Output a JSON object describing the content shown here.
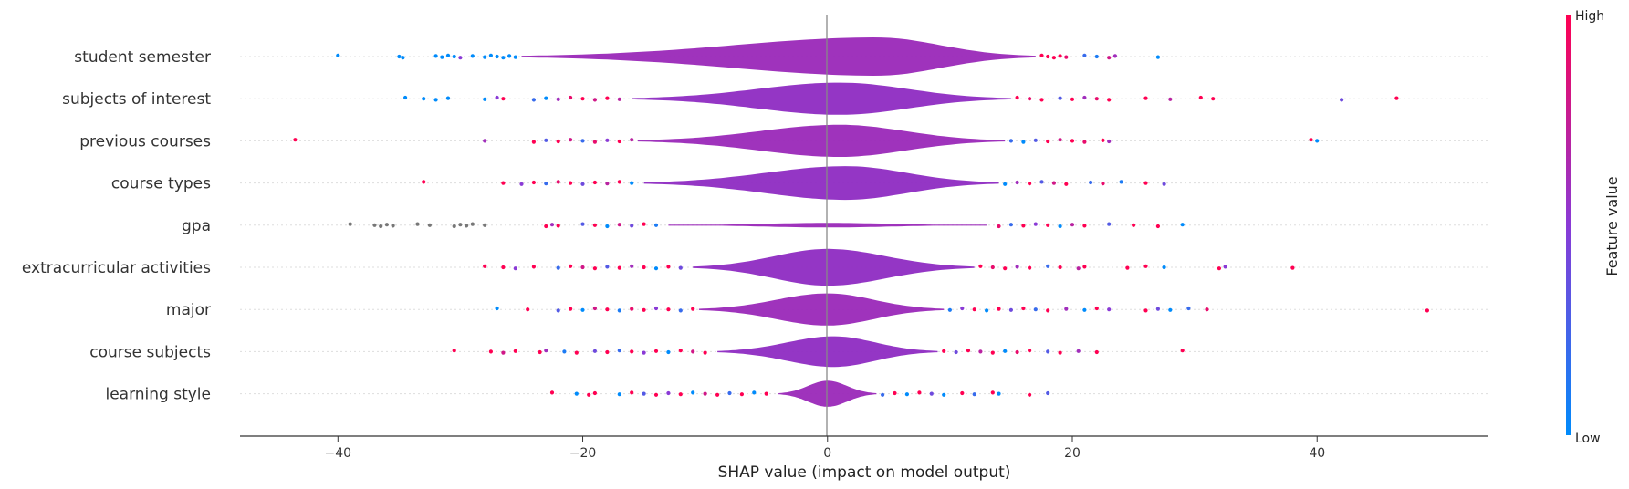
{
  "chart_data": {
    "type": "violin-summary",
    "xlabel": "SHAP value (impact on model output)",
    "xlim": [
      -48,
      54
    ],
    "xticks": [
      -40,
      -20,
      0,
      20,
      40
    ],
    "xtick_labels": [
      "−40",
      "−20",
      "0",
      "20",
      "40"
    ],
    "colorbar": {
      "title": "Feature value",
      "high_label": "High",
      "low_label": "Low",
      "low_color": "#008bfb",
      "high_color": "#ff0052"
    },
    "features": [
      {
        "name": "student semester",
        "min": -25,
        "max": 17,
        "peak": 4,
        "halfw": 0.5,
        "outliers": [
          {
            "x": -40,
            "v": 0
          },
          {
            "x": -35,
            "v": 0
          },
          {
            "x": -34.7,
            "v": 0
          },
          {
            "x": -32,
            "v": 0
          },
          {
            "x": -31.5,
            "v": 0
          },
          {
            "x": -31,
            "v": 0
          },
          {
            "x": -30.5,
            "v": 0
          },
          {
            "x": -30,
            "v": 0.5
          },
          {
            "x": -29,
            "v": 0
          },
          {
            "x": -28,
            "v": 0
          },
          {
            "x": -27.5,
            "v": 0
          },
          {
            "x": -27,
            "v": 0
          },
          {
            "x": -26.5,
            "v": 0
          },
          {
            "x": -26,
            "v": 0
          },
          {
            "x": -25.5,
            "v": 0
          },
          {
            "x": 17.5,
            "v": 1
          },
          {
            "x": 18,
            "v": 1
          },
          {
            "x": 18.5,
            "v": 1
          },
          {
            "x": 19,
            "v": 1
          },
          {
            "x": 19.5,
            "v": 0.9
          },
          {
            "x": 21,
            "v": 0.2
          },
          {
            "x": 22,
            "v": 0.1
          },
          {
            "x": 23,
            "v": 0.8
          },
          {
            "x": 23.5,
            "v": 0.6
          },
          {
            "x": 27,
            "v": 0
          }
        ]
      },
      {
        "name": "subjects of interest",
        "min": -16,
        "max": 15,
        "peak": 1,
        "halfw": 0.42,
        "outliers": [
          {
            "x": -34.5,
            "v": 0
          },
          {
            "x": -33,
            "v": 0
          },
          {
            "x": -32,
            "v": 0
          },
          {
            "x": -31,
            "v": 0
          },
          {
            "x": -28,
            "v": 0
          },
          {
            "x": -27,
            "v": 0.5
          },
          {
            "x": -26.5,
            "v": 1
          },
          {
            "x": -24,
            "v": 0.2
          },
          {
            "x": -23,
            "v": 0
          },
          {
            "x": -22,
            "v": 0.6
          },
          {
            "x": -21,
            "v": 0.9
          },
          {
            "x": -20,
            "v": 1
          },
          {
            "x": -19,
            "v": 0.8
          },
          {
            "x": -18,
            "v": 1
          },
          {
            "x": -17,
            "v": 0.7
          },
          {
            "x": 15.5,
            "v": 1
          },
          {
            "x": 16.5,
            "v": 0.9
          },
          {
            "x": 17.5,
            "v": 1
          },
          {
            "x": 19,
            "v": 0.3
          },
          {
            "x": 20,
            "v": 1
          },
          {
            "x": 21,
            "v": 0.6
          },
          {
            "x": 22,
            "v": 0.9
          },
          {
            "x": 23,
            "v": 1
          },
          {
            "x": 26,
            "v": 1
          },
          {
            "x": 28,
            "v": 0.7
          },
          {
            "x": 30.5,
            "v": 1
          },
          {
            "x": 31.5,
            "v": 1
          },
          {
            "x": 42,
            "v": 0.4
          },
          {
            "x": 46.5,
            "v": 1
          }
        ]
      },
      {
        "name": "previous courses",
        "min": -15.5,
        "max": 14.5,
        "peak": 1,
        "halfw": 0.42,
        "outliers": [
          {
            "x": -43.5,
            "v": 1
          },
          {
            "x": -28,
            "v": 0.6
          },
          {
            "x": -24,
            "v": 1
          },
          {
            "x": -23,
            "v": 0.3
          },
          {
            "x": -22,
            "v": 1
          },
          {
            "x": -21,
            "v": 0.8
          },
          {
            "x": -20,
            "v": 0.2
          },
          {
            "x": -19,
            "v": 0.9
          },
          {
            "x": -18,
            "v": 0.5
          },
          {
            "x": -17,
            "v": 1
          },
          {
            "x": -16,
            "v": 0.7
          },
          {
            "x": 15,
            "v": 0.2
          },
          {
            "x": 16,
            "v": 0
          },
          {
            "x": 17,
            "v": 0.3
          },
          {
            "x": 18,
            "v": 1
          },
          {
            "x": 19,
            "v": 0.8
          },
          {
            "x": 20,
            "v": 1
          },
          {
            "x": 21,
            "v": 0.9
          },
          {
            "x": 22.5,
            "v": 1
          },
          {
            "x": 23,
            "v": 0.6
          },
          {
            "x": 39.5,
            "v": 1
          },
          {
            "x": 40,
            "v": 0
          }
        ]
      },
      {
        "name": "course types",
        "min": -15,
        "max": 14,
        "peak": 1.5,
        "halfw": 0.44,
        "outliers": [
          {
            "x": -33,
            "v": 1
          },
          {
            "x": -26.5,
            "v": 1
          },
          {
            "x": -25,
            "v": 0.5
          },
          {
            "x": -24,
            "v": 1
          },
          {
            "x": -23,
            "v": 0.2
          },
          {
            "x": -22,
            "v": 0.9
          },
          {
            "x": -21,
            "v": 1
          },
          {
            "x": -20,
            "v": 0.4
          },
          {
            "x": -19,
            "v": 1
          },
          {
            "x": -18,
            "v": 0.7
          },
          {
            "x": -17,
            "v": 1
          },
          {
            "x": -16,
            "v": 0
          },
          {
            "x": 14.5,
            "v": 0
          },
          {
            "x": 15.5,
            "v": 0.6
          },
          {
            "x": 16.5,
            "v": 1
          },
          {
            "x": 17.5,
            "v": 0.3
          },
          {
            "x": 18.5,
            "v": 0.8
          },
          {
            "x": 19.5,
            "v": 1
          },
          {
            "x": 21.5,
            "v": 0.2
          },
          {
            "x": 22.5,
            "v": 0.9
          },
          {
            "x": 24,
            "v": 0.1
          },
          {
            "x": 26,
            "v": 1
          },
          {
            "x": 27.5,
            "v": 0.4
          }
        ]
      },
      {
        "name": "gpa",
        "min": -13,
        "max": 13,
        "peak": 0,
        "halfw": 0.06,
        "outliers": [
          {
            "x": -39,
            "v": -1
          },
          {
            "x": -37,
            "v": -1
          },
          {
            "x": -36.5,
            "v": -1
          },
          {
            "x": -36,
            "v": -1
          },
          {
            "x": -35.5,
            "v": -1
          },
          {
            "x": -33.5,
            "v": -1
          },
          {
            "x": -32.5,
            "v": -1
          },
          {
            "x": -30.5,
            "v": -1
          },
          {
            "x": -30,
            "v": -1
          },
          {
            "x": -29.5,
            "v": -1
          },
          {
            "x": -29,
            "v": -1
          },
          {
            "x": -28,
            "v": -1
          },
          {
            "x": -23,
            "v": 1
          },
          {
            "x": -22.5,
            "v": 0.6
          },
          {
            "x": -22,
            "v": 1
          },
          {
            "x": -20,
            "v": 0.3
          },
          {
            "x": -19,
            "v": 1
          },
          {
            "x": -18,
            "v": 0
          },
          {
            "x": -17,
            "v": 0.8
          },
          {
            "x": -16,
            "v": 0.4
          },
          {
            "x": -15,
            "v": 1
          },
          {
            "x": -14,
            "v": 0.1
          },
          {
            "x": 14,
            "v": 0.9
          },
          {
            "x": 15,
            "v": 0.2
          },
          {
            "x": 16,
            "v": 1
          },
          {
            "x": 17,
            "v": 0.5
          },
          {
            "x": 18,
            "v": 1
          },
          {
            "x": 19,
            "v": 0
          },
          {
            "x": 20,
            "v": 0.7
          },
          {
            "x": 21,
            "v": 1
          },
          {
            "x": 23,
            "v": 0.3
          },
          {
            "x": 25,
            "v": 1
          },
          {
            "x": 27,
            "v": 1
          },
          {
            "x": 29,
            "v": 0
          }
        ]
      },
      {
        "name": "extracurricular activities",
        "min": -11,
        "max": 12,
        "peak": 0,
        "halfw": 0.48,
        "outliers": [
          {
            "x": -28,
            "v": 1
          },
          {
            "x": -26.5,
            "v": 1
          },
          {
            "x": -25.5,
            "v": 0.5
          },
          {
            "x": -24,
            "v": 1
          },
          {
            "x": -22,
            "v": 0.2
          },
          {
            "x": -21,
            "v": 1
          },
          {
            "x": -20,
            "v": 0.8
          },
          {
            "x": -19,
            "v": 1
          },
          {
            "x": -18,
            "v": 0.3
          },
          {
            "x": -17,
            "v": 1
          },
          {
            "x": -16,
            "v": 0.6
          },
          {
            "x": -15,
            "v": 1
          },
          {
            "x": -14,
            "v": 0
          },
          {
            "x": -13,
            "v": 1
          },
          {
            "x": -12,
            "v": 0.4
          },
          {
            "x": 12.5,
            "v": 1
          },
          {
            "x": 13.5,
            "v": 0.9
          },
          {
            "x": 14.5,
            "v": 1
          },
          {
            "x": 15.5,
            "v": 0.6
          },
          {
            "x": 16.5,
            "v": 1
          },
          {
            "x": 18,
            "v": 0.2
          },
          {
            "x": 19,
            "v": 1
          },
          {
            "x": 20.5,
            "v": 0.7
          },
          {
            "x": 21,
            "v": 1
          },
          {
            "x": 24.5,
            "v": 1
          },
          {
            "x": 26,
            "v": 1
          },
          {
            "x": 27.5,
            "v": 0
          },
          {
            "x": 32,
            "v": 1
          },
          {
            "x": 32.5,
            "v": 0.5
          },
          {
            "x": 38,
            "v": 1
          }
        ]
      },
      {
        "name": "major",
        "min": -10.5,
        "max": 9.5,
        "peak": 0,
        "halfw": 0.42,
        "outliers": [
          {
            "x": -27,
            "v": 0
          },
          {
            "x": -24.5,
            "v": 1
          },
          {
            "x": -22,
            "v": 0.3
          },
          {
            "x": -21,
            "v": 1
          },
          {
            "x": -20,
            "v": 0
          },
          {
            "x": -19,
            "v": 0.8
          },
          {
            "x": -18,
            "v": 1
          },
          {
            "x": -17,
            "v": 0.1
          },
          {
            "x": -16,
            "v": 0.9
          },
          {
            "x": -15,
            "v": 1
          },
          {
            "x": -14,
            "v": 0.5
          },
          {
            "x": -13,
            "v": 1
          },
          {
            "x": -12,
            "v": 0.2
          },
          {
            "x": -11,
            "v": 1
          },
          {
            "x": 10,
            "v": 0.1
          },
          {
            "x": 11,
            "v": 0.5
          },
          {
            "x": 12,
            "v": 1
          },
          {
            "x": 13,
            "v": 0
          },
          {
            "x": 14,
            "v": 1
          },
          {
            "x": 15,
            "v": 0.4
          },
          {
            "x": 16,
            "v": 1
          },
          {
            "x": 17,
            "v": 0.2
          },
          {
            "x": 18,
            "v": 1
          },
          {
            "x": 19.5,
            "v": 0.6
          },
          {
            "x": 21,
            "v": 0
          },
          {
            "x": 22,
            "v": 1
          },
          {
            "x": 23,
            "v": 0.5
          },
          {
            "x": 26,
            "v": 1
          },
          {
            "x": 27,
            "v": 0.4
          },
          {
            "x": 28,
            "v": 0
          },
          {
            "x": 29.5,
            "v": 0.2
          },
          {
            "x": 31,
            "v": 0.9
          },
          {
            "x": 49,
            "v": 1
          }
        ]
      },
      {
        "name": "course subjects",
        "min": -9,
        "max": 9,
        "peak": 0.5,
        "halfw": 0.4,
        "outliers": [
          {
            "x": -30.5,
            "v": 1
          },
          {
            "x": -27.5,
            "v": 1
          },
          {
            "x": -26.5,
            "v": 0.8
          },
          {
            "x": -25.5,
            "v": 1
          },
          {
            "x": -23.5,
            "v": 1
          },
          {
            "x": -23,
            "v": 0.6
          },
          {
            "x": -21.5,
            "v": 0.1
          },
          {
            "x": -20.5,
            "v": 1
          },
          {
            "x": -19,
            "v": 0.4
          },
          {
            "x": -18,
            "v": 1
          },
          {
            "x": -17,
            "v": 0.2
          },
          {
            "x": -16,
            "v": 1
          },
          {
            "x": -15,
            "v": 0.5
          },
          {
            "x": -14,
            "v": 1
          },
          {
            "x": -13,
            "v": 0
          },
          {
            "x": -12,
            "v": 1
          },
          {
            "x": -11,
            "v": 0.8
          },
          {
            "x": -10,
            "v": 1
          },
          {
            "x": 9.5,
            "v": 1
          },
          {
            "x": 10.5,
            "v": 0.4
          },
          {
            "x": 11.5,
            "v": 1
          },
          {
            "x": 12.5,
            "v": 0.7
          },
          {
            "x": 13.5,
            "v": 1
          },
          {
            "x": 14.5,
            "v": 0
          },
          {
            "x": 15.5,
            "v": 0.9
          },
          {
            "x": 16.5,
            "v": 1
          },
          {
            "x": 18,
            "v": 0.3
          },
          {
            "x": 19,
            "v": 1
          },
          {
            "x": 20.5,
            "v": 0.6
          },
          {
            "x": 22,
            "v": 1
          },
          {
            "x": 29,
            "v": 1
          }
        ]
      },
      {
        "name": "learning style",
        "min": -4,
        "max": 4,
        "peak": 0,
        "halfw": 0.34,
        "outliers": [
          {
            "x": -22.5,
            "v": 1
          },
          {
            "x": -20.5,
            "v": 0
          },
          {
            "x": -19.5,
            "v": 1
          },
          {
            "x": -19,
            "v": 1
          },
          {
            "x": -17,
            "v": 0
          },
          {
            "x": -16,
            "v": 1
          },
          {
            "x": -15,
            "v": 0.3
          },
          {
            "x": -14,
            "v": 1
          },
          {
            "x": -13,
            "v": 0.5
          },
          {
            "x": -12,
            "v": 1
          },
          {
            "x": -11,
            "v": 0
          },
          {
            "x": -10,
            "v": 0.8
          },
          {
            "x": -9,
            "v": 1
          },
          {
            "x": -8,
            "v": 0.2
          },
          {
            "x": -7,
            "v": 1
          },
          {
            "x": -6,
            "v": 0
          },
          {
            "x": -5,
            "v": 1
          },
          {
            "x": 4.5,
            "v": 0.2
          },
          {
            "x": 5.5,
            "v": 1
          },
          {
            "x": 6.5,
            "v": 0
          },
          {
            "x": 7.5,
            "v": 1
          },
          {
            "x": 8.5,
            "v": 0.4
          },
          {
            "x": 9.5,
            "v": 0
          },
          {
            "x": 11,
            "v": 1
          },
          {
            "x": 12,
            "v": 0.2
          },
          {
            "x": 13.5,
            "v": 1
          },
          {
            "x": 14,
            "v": 0
          },
          {
            "x": 16.5,
            "v": 1
          },
          {
            "x": 18,
            "v": 0.3
          }
        ]
      }
    ]
  }
}
